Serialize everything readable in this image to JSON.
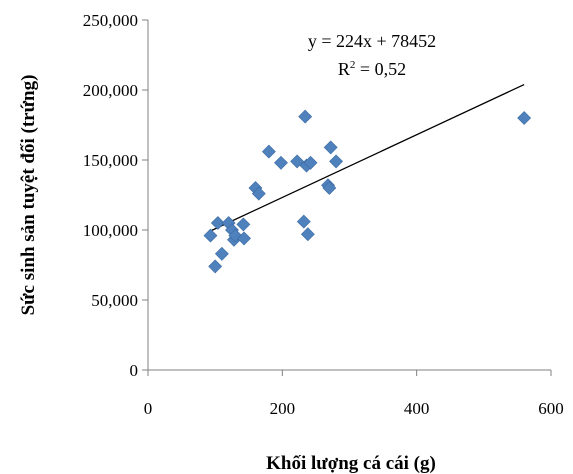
{
  "chart_data": {
    "type": "scatter",
    "title": "",
    "xlabel": "Khối lượng cá cái (g)",
    "ylabel": "Sức sinh sản tuyệt đối (trứng)",
    "xlim": [
      0,
      600
    ],
    "ylim": [
      0,
      250000
    ],
    "x_ticks": [
      0,
      200,
      400,
      600
    ],
    "x_tick_labels": [
      "0",
      "200",
      "400",
      "600"
    ],
    "y_ticks": [
      0,
      50000,
      100000,
      150000,
      200000,
      250000
    ],
    "y_tick_labels": [
      "0",
      "50,000",
      "100,000",
      "150,000",
      "200,000",
      "250,000"
    ],
    "grid": false,
    "legend": "none",
    "marker_color": "#4f81bd",
    "trendline": {
      "slope": 224,
      "intercept": 78452,
      "x_range": [
        93,
        560
      ],
      "color": "#000000",
      "equation": "y = 224x + 78452",
      "r2_prefix": "R",
      "r2_exponent": "2",
      "r2_value": " = 0,52"
    },
    "series": [
      {
        "points": [
          [
            93,
            96000
          ],
          [
            100,
            74000
          ],
          [
            104,
            105000
          ],
          [
            110,
            83000
          ],
          [
            120,
            105000
          ],
          [
            125,
            100000
          ],
          [
            128,
            93000
          ],
          [
            130,
            96000
          ],
          [
            142,
            104000
          ],
          [
            143,
            94000
          ],
          [
            160,
            130000
          ],
          [
            165,
            126000
          ],
          [
            180,
            156000
          ],
          [
            198,
            148000
          ],
          [
            222,
            149000
          ],
          [
            232,
            106000
          ],
          [
            234,
            181000
          ],
          [
            236,
            146000
          ],
          [
            238,
            97000
          ],
          [
            242,
            148000
          ],
          [
            268,
            132000
          ],
          [
            270,
            130000
          ],
          [
            272,
            159000
          ],
          [
            280,
            149000
          ],
          [
            560,
            180000
          ]
        ]
      }
    ]
  }
}
